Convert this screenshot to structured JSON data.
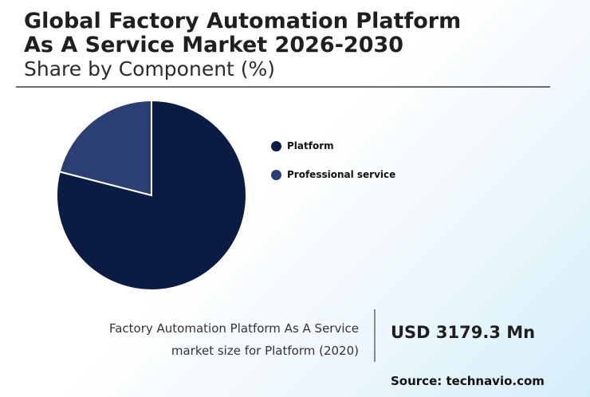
{
  "header": {
    "title_line1": "Global Factory Automation Platform",
    "title_line2": "As A Service Market 2026-2030",
    "subtitle": "Share by Component (%)"
  },
  "chart_data": {
    "type": "pie",
    "categories": [
      "Platform",
      "Professional service"
    ],
    "values": [
      79,
      21
    ],
    "colors": [
      "#0a1c44",
      "#2b3f72"
    ],
    "legend_position": "right"
  },
  "footer": {
    "caption_line1": "Factory Automation Platform As A Service",
    "caption_line2": "market size for Platform (2020)",
    "value": "USD 3179.3 Mn",
    "source": "Source: technavio.com"
  }
}
